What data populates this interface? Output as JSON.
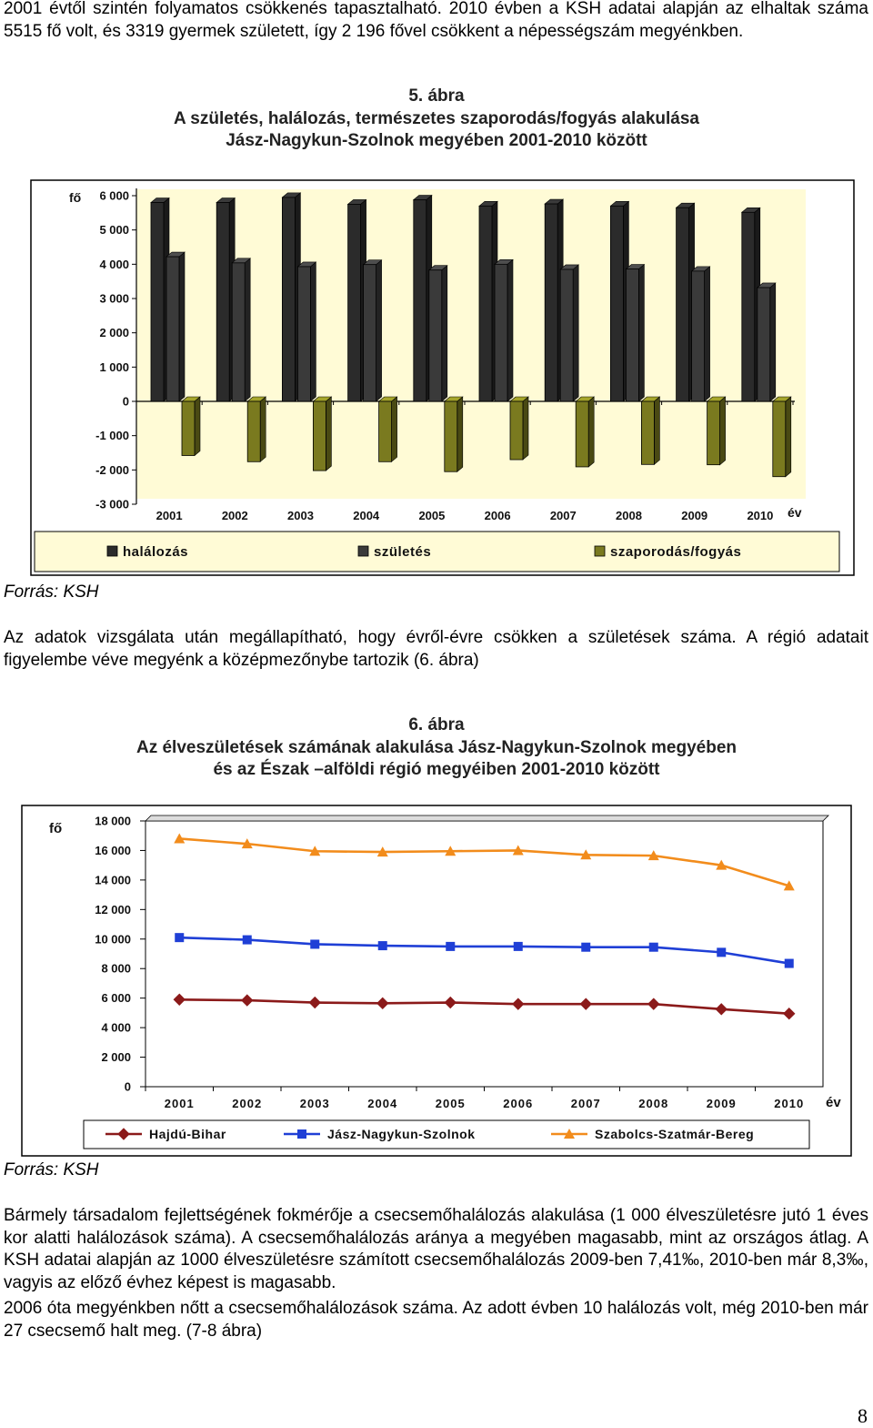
{
  "paragraphs": {
    "p1": "2001 évtől szintén folyamatos csökkenés tapasztalható. 2010 évben a KSH adatai alapján az elhaltak száma 5515 fő volt, és 3319 gyermek született, így 2 196 fővel csökkent a népességszám megyénkben.",
    "p2": "Az adatok vizsgálata után megállapítható, hogy évről-évre csökken a születések száma. A régió adatait figyelembe véve megyénk a középmezőnybe tartozik (6. ábra)",
    "p3": "Bármely társadalom fejlettségének fokmérője a csecsemőhalálozás alakulása (1 000 élveszületésre jutó 1 éves kor alatti halálozások száma). A csecsemőhalálozás aránya a megyében magasabb, mint az országos átlag. A KSH adatai alapján az 1000 élveszületésre számított csecsemőhalálozás 2009-ben 7,41‰, 2010-ben már 8,3‰, vagyis az előző évhez képest is magasabb.",
    "p4": "2006 óta megyénkben nőtt a csecsemőhalálozások száma. Az adott évben 10 halálozás volt, még 2010-ben már 27 csecsemő halt meg. (7-8 ábra)"
  },
  "figure5": {
    "number": "5. ábra",
    "title_line1": "A születés, halálozás, természetes szaporodás/fogyás alakulása",
    "title_line2": "Jász-Nagykun-Szolnok megyében 2001-2010 között",
    "source": "Forrás: KSH"
  },
  "figure6": {
    "number": "6. ábra",
    "title_line1": "Az élveszületések számának alakulása Jász-Nagykun-Szolnok megyében",
    "title_line2": "és az Észak –alföldi régió megyéiben 2001-2010 között",
    "source": "Forrás: KSH"
  },
  "page_number": "8",
  "chart_data": [
    {
      "type": "bar",
      "ylabel": "fő",
      "xlabel": "év",
      "ylim": [
        -3000,
        6000
      ],
      "yticks": [
        6000,
        5000,
        4000,
        3000,
        2000,
        1000,
        0,
        -1000,
        -2000,
        -3000
      ],
      "ytick_labels": [
        "6 000",
        "5 000",
        "4 000",
        "3 000",
        "2 000",
        "1 000",
        "0",
        "-1 000",
        "-2 000",
        "-3 000"
      ],
      "categories": [
        "2001",
        "2002",
        "2003",
        "2004",
        "2005",
        "2006",
        "2007",
        "2008",
        "2009",
        "2010"
      ],
      "legend_position": "bottom",
      "series": [
        {
          "name": "halálozás",
          "color": "#2b2b2b",
          "values": [
            5800,
            5800,
            5950,
            5750,
            5880,
            5700,
            5760,
            5700,
            5650,
            5515
          ]
        },
        {
          "name": "születés",
          "color": "#3a3a3a",
          "values": [
            4220,
            4040,
            3930,
            3990,
            3830,
            4000,
            3850,
            3860,
            3800,
            3319
          ]
        },
        {
          "name": "szaporodás/fogyás",
          "color": "#7a7a1f",
          "values": [
            -1580,
            -1760,
            -2020,
            -1760,
            -2050,
            -1700,
            -1910,
            -1840,
            -1850,
            -2196
          ]
        }
      ]
    },
    {
      "type": "line",
      "ylabel": "fő",
      "xlabel": "év",
      "ylim": [
        0,
        18000
      ],
      "yticks": [
        18000,
        16000,
        14000,
        12000,
        10000,
        8000,
        6000,
        4000,
        2000,
        0
      ],
      "ytick_labels": [
        "18 000",
        "16 000",
        "14 000",
        "12 000",
        "10 000",
        "8 000",
        "6 000",
        "4 000",
        "2 000",
        "0"
      ],
      "categories": [
        "2001",
        "2002",
        "2003",
        "2004",
        "2005",
        "2006",
        "2007",
        "2008",
        "2009",
        "2010"
      ],
      "legend_position": "bottom",
      "series": [
        {
          "name": "Hajdú-Bihar",
          "color": "#8b1a1a",
          "marker": "diamond",
          "values": [
            5900,
            5850,
            5700,
            5650,
            5700,
            5600,
            5600,
            5600,
            5250,
            4950
          ]
        },
        {
          "name": "Jász-Nagykun-Szolnok",
          "color": "#1f3fd6",
          "marker": "square",
          "values": [
            10100,
            9950,
            9650,
            9550,
            9500,
            9500,
            9450,
            9450,
            9100,
            8350
          ]
        },
        {
          "name": "Szabolcs-Szatmár-Bereg",
          "color": "#f28c1c",
          "marker": "triangle",
          "values": [
            16800,
            16450,
            15950,
            15900,
            15950,
            16000,
            15700,
            15650,
            15000,
            13600
          ]
        }
      ]
    }
  ]
}
